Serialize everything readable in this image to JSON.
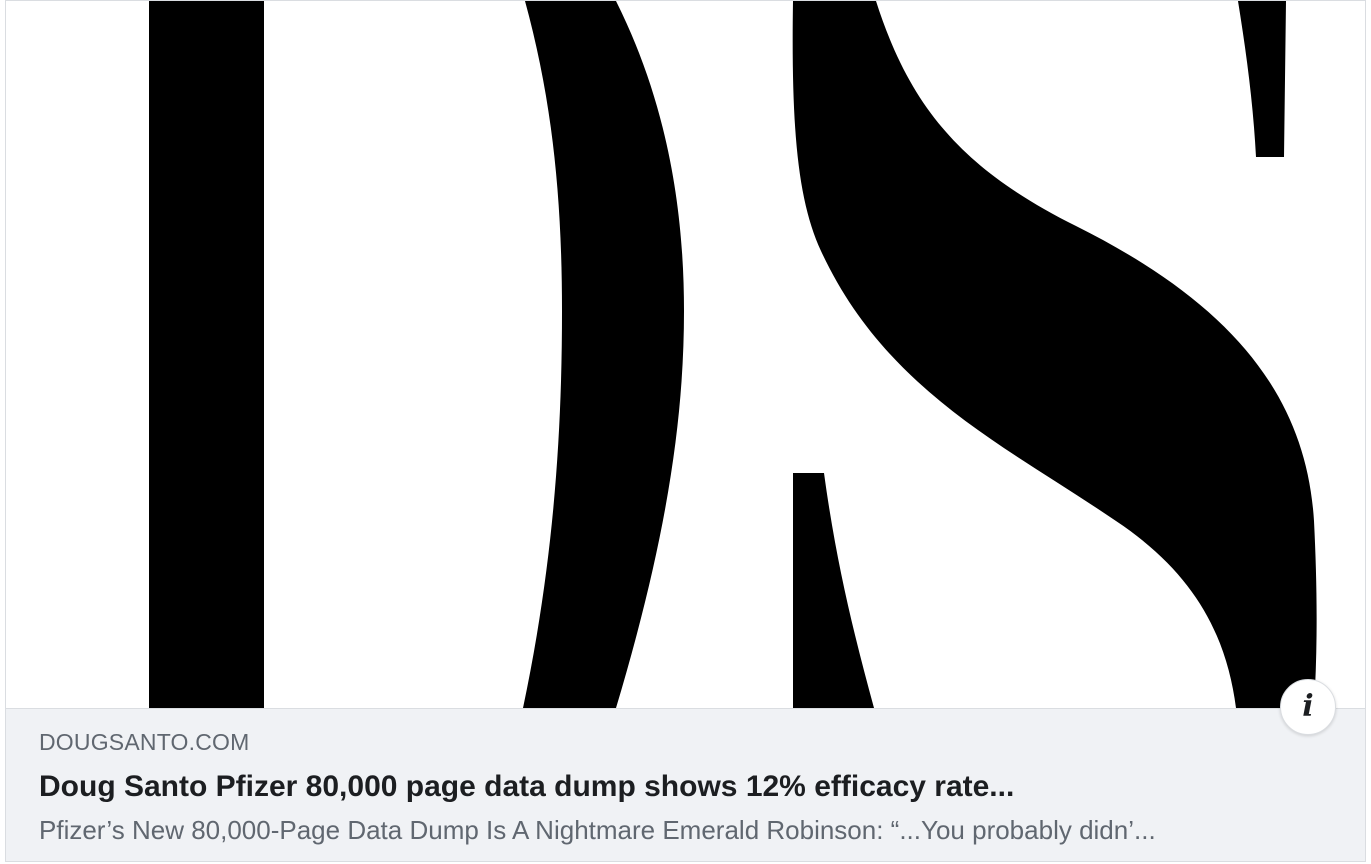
{
  "link_card": {
    "preview_image": {
      "logo_letters": "DS",
      "background_color": "#ffffff",
      "ink_color": "#000000"
    },
    "info_button": {
      "icon": "info-icon",
      "glyph": "i"
    },
    "domain": "DOUGSANTO.COM",
    "headline": "Doug Santo Pfizer 80,000 page data dump shows 12% efficacy rate...",
    "description": "Pfizer’s New 80,000-Page Data Dump Is A Nightmare Emerald Robinson: “...You probably didn’..."
  }
}
